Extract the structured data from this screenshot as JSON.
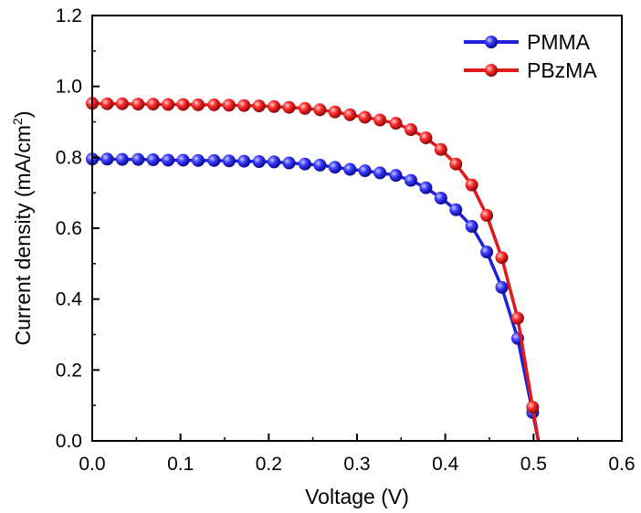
{
  "chart_data": {
    "type": "line",
    "xlabel": "Voltage (V)",
    "ylabel_main": "Current density (mA/cm",
    "ylabel_sup": "2",
    "ylabel_close": ")",
    "xlim": [
      0.0,
      0.6
    ],
    "ylim": [
      0.0,
      1.2
    ],
    "xticks": [
      "0.0",
      "0.1",
      "0.2",
      "0.3",
      "0.4",
      "0.5",
      "0.6"
    ],
    "yticks": [
      "0.0",
      "0.2",
      "0.4",
      "0.6",
      "0.8",
      "1.0",
      "1.2"
    ],
    "grid": false,
    "legend_position": "top-right",
    "series": [
      {
        "name": "PMMA",
        "color": "#1f1fdc",
        "marker_color": "#1a1adf",
        "curve": {
          "jsc": 0.795,
          "voc": 0.513,
          "n_ideality": 1.7,
          "rs": 0.35,
          "rsh": 80
        },
        "points": [
          [
            0.0,
            0.795
          ],
          [
            0.017,
            0.795
          ],
          [
            0.034,
            0.794
          ],
          [
            0.052,
            0.794
          ],
          [
            0.069,
            0.793
          ],
          [
            0.086,
            0.792
          ],
          [
            0.103,
            0.792
          ],
          [
            0.12,
            0.791
          ],
          [
            0.138,
            0.791
          ],
          [
            0.155,
            0.79
          ],
          [
            0.172,
            0.789
          ],
          [
            0.189,
            0.788
          ],
          [
            0.206,
            0.787
          ],
          [
            0.223,
            0.784
          ],
          [
            0.241,
            0.781
          ],
          [
            0.258,
            0.778
          ],
          [
            0.275,
            0.772
          ],
          [
            0.292,
            0.766
          ],
          [
            0.309,
            0.762
          ],
          [
            0.326,
            0.756
          ],
          [
            0.344,
            0.749
          ],
          [
            0.361,
            0.735
          ],
          [
            0.378,
            0.714
          ],
          [
            0.395,
            0.685
          ],
          [
            0.412,
            0.652
          ],
          [
            0.43,
            0.605
          ],
          [
            0.447,
            0.533
          ],
          [
            0.464,
            0.433
          ],
          [
            0.482,
            0.289
          ],
          [
            0.499,
            0.08
          ]
        ]
      },
      {
        "name": "PBzMA",
        "color": "#e01818",
        "marker_color": "#e51515",
        "curve": {
          "jsc": 0.952,
          "voc": 0.52,
          "n_ideality": 1.6,
          "rs": 0.28,
          "rsh": 90
        },
        "points": [
          [
            0.0,
            0.952
          ],
          [
            0.017,
            0.951
          ],
          [
            0.034,
            0.951
          ],
          [
            0.052,
            0.95
          ],
          [
            0.069,
            0.95
          ],
          [
            0.086,
            0.949
          ],
          [
            0.103,
            0.949
          ],
          [
            0.12,
            0.948
          ],
          [
            0.138,
            0.948
          ],
          [
            0.155,
            0.947
          ],
          [
            0.172,
            0.946
          ],
          [
            0.189,
            0.945
          ],
          [
            0.206,
            0.943
          ],
          [
            0.223,
            0.941
          ],
          [
            0.241,
            0.938
          ],
          [
            0.258,
            0.934
          ],
          [
            0.275,
            0.928
          ],
          [
            0.292,
            0.92
          ],
          [
            0.309,
            0.913
          ],
          [
            0.326,
            0.905
          ],
          [
            0.344,
            0.896
          ],
          [
            0.361,
            0.878
          ],
          [
            0.378,
            0.855
          ],
          [
            0.395,
            0.822
          ],
          [
            0.412,
            0.781
          ],
          [
            0.43,
            0.722
          ],
          [
            0.447,
            0.636
          ],
          [
            0.464,
            0.517
          ],
          [
            0.482,
            0.346
          ],
          [
            0.499,
            0.095
          ]
        ]
      }
    ]
  }
}
